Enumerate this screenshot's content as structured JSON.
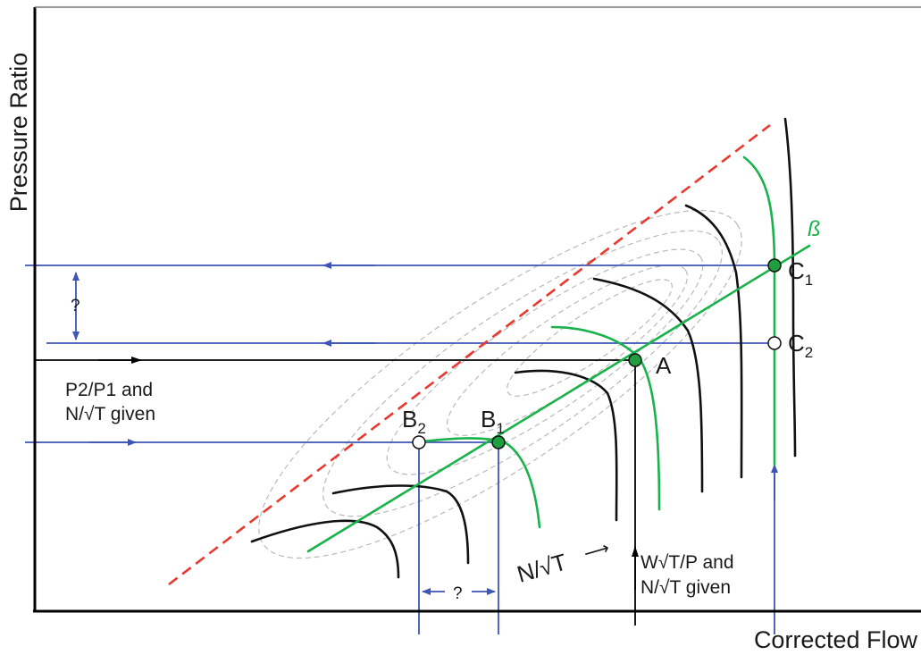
{
  "axes": {
    "y_label": "Pressure Ratio",
    "x_label": "Corrected Flow"
  },
  "beta_label": "ß",
  "points": {
    "A": {
      "letter": "A",
      "sub": ""
    },
    "B1": {
      "letter": "B",
      "sub": "1"
    },
    "B2": {
      "letter": "B",
      "sub": "2"
    },
    "C1": {
      "letter": "C",
      "sub": "1"
    },
    "C2": {
      "letter": "C",
      "sub": "2"
    }
  },
  "annotations": {
    "pressure_given_line1": "P2/P1 and",
    "pressure_given_line2": "N/√T given",
    "flow_given_line1": "W√T/P and",
    "flow_given_line2": "N/√T given",
    "speed_label": "N/√T",
    "speed_arrow": "⟶",
    "question_vertical": "?",
    "question_horizontal": "?"
  },
  "colors": {
    "axis": "#000000",
    "speed_lines": "#111111",
    "beta_lines": "#19b24b",
    "surge_line": "#e8382f",
    "construction_lines": "#3d55b5",
    "efficiency_contours": "#b9b9b9",
    "solid_point_fill": "#1e9e3e",
    "hollow_point_fill": "#ffffff"
  }
}
